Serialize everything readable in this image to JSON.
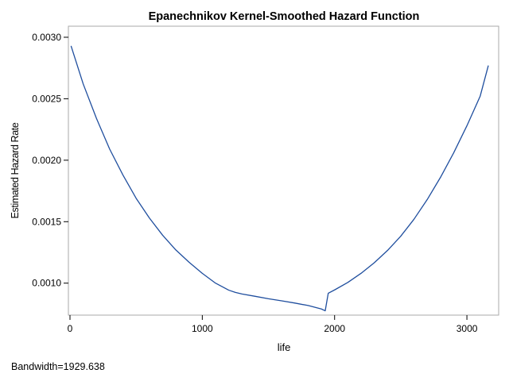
{
  "chart_data": {
    "type": "line",
    "title": "Epanechnikov Kernel-Smoothed Hazard Function",
    "xlabel": "life",
    "ylabel": "Estimated Hazard Rate",
    "xlim": [
      -12,
      3240
    ],
    "ylim": [
      0.00074,
      0.00309
    ],
    "x_ticks": [
      0,
      1000,
      2000,
      3000
    ],
    "x_tick_labels": [
      "0",
      "1000",
      "2000",
      "3000"
    ],
    "y_ticks": [
      0.001,
      0.0015,
      0.002,
      0.0025,
      0.003
    ],
    "y_tick_labels": [
      "0.0010",
      "0.0015",
      "0.0020",
      "0.0025",
      "0.0030"
    ],
    "grid": false,
    "legend": "none",
    "line_color": "#1f4e9e",
    "series": [
      {
        "x": [
          8,
          100,
          200,
          300,
          400,
          500,
          600,
          700,
          800,
          900,
          1000,
          1100,
          1200,
          1250,
          1300,
          1400,
          1500,
          1600,
          1700,
          1800,
          1900,
          1929,
          1952,
          2000,
          2100,
          2200,
          2300,
          2400,
          2500,
          2600,
          2700,
          2800,
          2900,
          3000,
          3100,
          3162
        ],
        "y": [
          0.00293,
          0.00262,
          0.00234,
          0.00209,
          0.00188,
          0.00169,
          0.00153,
          0.00139,
          0.00127,
          0.00117,
          0.00108,
          0.001,
          0.000943,
          0.000925,
          0.000912,
          0.000893,
          0.000873,
          0.000856,
          0.000838,
          0.000818,
          0.00079,
          0.000775,
          0.000918,
          0.000945,
          0.001006,
          0.00108,
          0.001166,
          0.001266,
          0.001382,
          0.00152,
          0.00168,
          0.00186,
          0.00206,
          0.00228,
          0.00252,
          0.00277
        ]
      }
    ]
  },
  "footnote": "Bandwidth=1929.638"
}
